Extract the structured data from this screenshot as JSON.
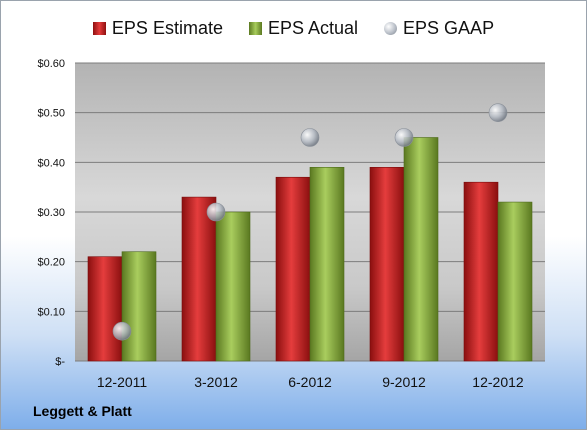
{
  "company": "Leggett & Platt",
  "chart_data": {
    "type": "bar",
    "categories": [
      "12-2011",
      "3-2012",
      "6-2012",
      "9-2012",
      "12-2012"
    ],
    "series": [
      {
        "name": "EPS Estimate",
        "type": "bar",
        "values": [
          0.21,
          0.33,
          0.37,
          0.39,
          0.36
        ],
        "color": "#c81e1e"
      },
      {
        "name": "EPS Actual",
        "type": "bar",
        "values": [
          0.22,
          0.3,
          0.39,
          0.45,
          0.32
        ],
        "color": "#7f9f3c"
      },
      {
        "name": "EPS GAAP",
        "type": "scatter",
        "values": [
          0.06,
          0.3,
          0.45,
          0.45,
          0.5
        ],
        "color": "#a8aeb6"
      }
    ],
    "y_ticks": [
      0,
      0.1,
      0.2,
      0.3,
      0.4,
      0.5,
      0.6
    ],
    "y_tick_labels": [
      "$-",
      "$0.10",
      "$0.20",
      "$0.30",
      "$0.40",
      "$0.50",
      "$0.60"
    ],
    "ylim": [
      0,
      0.6
    ],
    "grid": true,
    "legend": "top"
  }
}
